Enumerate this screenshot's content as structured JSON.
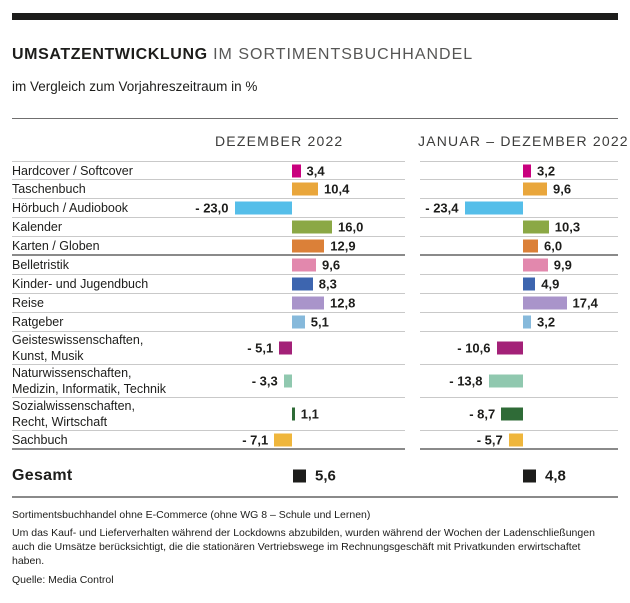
{
  "header": {
    "title_bold": "UMSATZENTWICKLUNG",
    "title_rest": " IM SORTIMENTSBUCHHANDEL",
    "subtitle": "im Vergleich zum Vorjahreszeitraum in %"
  },
  "chart_data": {
    "type": "bar",
    "orientation": "horizontal",
    "unit": "%",
    "value_format": "german decimal comma, one decimal",
    "title": "UMSATZENTWICKLUNG IM SORTIMENTSBUCHHANDEL",
    "subtitle": "im Vergleich zum Vorjahreszeitraum in %",
    "columns": [
      "DEZEMBER 2022",
      "JANUAR – DEZEMBER 2022"
    ],
    "rows": [
      {
        "label_lines": [
          "Hardcover / Softcover"
        ],
        "values": [
          3.4,
          3.2
        ],
        "color": "#C9007E",
        "group_end": false
      },
      {
        "label_lines": [
          "Taschenbuch"
        ],
        "values": [
          10.4,
          9.6
        ],
        "color": "#E9A63B",
        "group_end": false
      },
      {
        "label_lines": [
          "Hörbuch / Audiobook"
        ],
        "values": [
          -23.0,
          -23.4
        ],
        "color": "#55BEE9",
        "group_end": false
      },
      {
        "label_lines": [
          "Kalender"
        ],
        "values": [
          16.0,
          10.3
        ],
        "color": "#8BA845",
        "group_end": false
      },
      {
        "label_lines": [
          "Karten / Globen"
        ],
        "values": [
          12.9,
          6.0
        ],
        "color": "#DB8038",
        "group_end": true
      },
      {
        "label_lines": [
          "Belletristik"
        ],
        "values": [
          9.6,
          9.9
        ],
        "color": "#E288AD",
        "group_end": false
      },
      {
        "label_lines": [
          "Kinder- und Jugendbuch"
        ],
        "values": [
          8.3,
          4.9
        ],
        "color": "#3D65AF",
        "group_end": false
      },
      {
        "label_lines": [
          "Reise"
        ],
        "values": [
          12.8,
          17.4
        ],
        "color": "#A994CA",
        "group_end": false
      },
      {
        "label_lines": [
          "Ratgeber"
        ],
        "values": [
          5.1,
          3.2
        ],
        "color": "#86B9DB",
        "group_end": false
      },
      {
        "label_lines": [
          "Geisteswissenschaften,",
          "Kunst, Musik"
        ],
        "values": [
          -5.1,
          -10.6
        ],
        "color": "#A32178",
        "group_end": false
      },
      {
        "label_lines": [
          "Naturwissenschaften,",
          "Medizin, Informatik, Technik"
        ],
        "values": [
          -3.3,
          -13.8
        ],
        "color": "#90C8AF",
        "group_end": false
      },
      {
        "label_lines": [
          "Sozialwissenschaften,",
          "Recht, Wirtschaft"
        ],
        "values": [
          1.1,
          -8.7
        ],
        "color": "#2F6B37",
        "group_end": false
      },
      {
        "label_lines": [
          "Sachbuch"
        ],
        "values": [
          -7.1,
          -5.7
        ],
        "color": "#EFB63C",
        "group_end": true
      }
    ],
    "total": {
      "label": "Gesamt",
      "values": [
        5.6,
        4.8
      ],
      "color": "#1D1D1B"
    },
    "legend_position": "none",
    "grid": "row-separators-only"
  },
  "footnotes": [
    "Sortimentsbuchhandel ohne E-Commerce (ohne WG 8 – Schule und Lernen)",
    "Um das Kauf- und Lieferverhalten während der Lockdowns abzubilden, wurden während der Wochen der Ladenschließungen auch die Umsätze berücksichtigt, die die stationären Vertriebswege im Rechnungsgeschäft mit Privatkunden erwirtschaftet haben."
  ],
  "source": "Quelle: Media Control"
}
